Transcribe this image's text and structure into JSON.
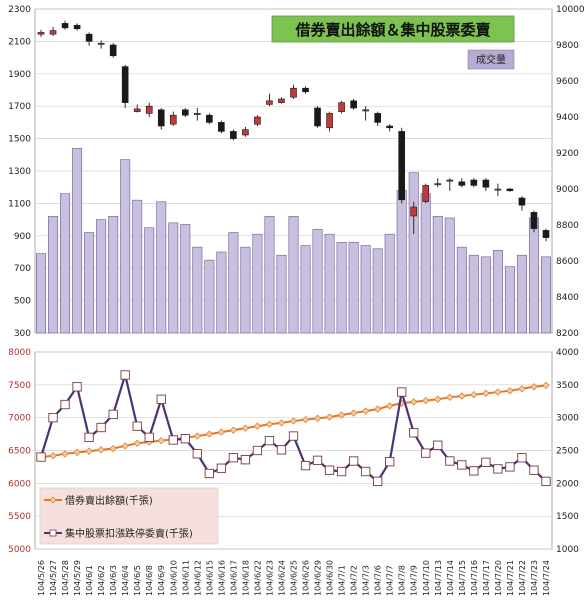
{
  "colors": {
    "volume_fill": "#c9bfe0",
    "volume_stroke": "#6b5f8f",
    "candle_up": "#c0393b",
    "candle_down": "#1a1a1a",
    "margin_line": "#e07b22",
    "margin_marker": "#f1c9a3",
    "pending_line": "#4a3477",
    "pending_marker": "#ffffff",
    "title_bg": "#7ec352",
    "legend_box_bg": "#f6e0dd"
  },
  "chart_data": [
    {
      "type": "candlestick+bar",
      "title": "借券賣出餘額＆集中股票委賣",
      "volume_label": "成交量",
      "left_axis": {
        "min": 300,
        "max": 2300,
        "ticks": [
          300,
          500,
          700,
          900,
          1100,
          1300,
          1500,
          1700,
          1900,
          2100,
          2300
        ]
      },
      "right_axis": {
        "min": 8200,
        "max": 10000,
        "ticks": [
          8200,
          8400,
          8600,
          8800,
          9000,
          9200,
          9400,
          9600,
          9800,
          10000
        ]
      },
      "grid": true,
      "categories": [
        "104/5/26",
        "104/5/27",
        "104/5/28",
        "104/5/29",
        "104/6/1",
        "104/6/2",
        "104/6/3",
        "104/6/4",
        "104/6/5",
        "104/6/8",
        "104/6/9",
        "104/6/10",
        "104/6/11",
        "104/6/12",
        "104/6/15",
        "104/6/16",
        "104/6/17",
        "104/6/18",
        "104/6/22",
        "104/6/23",
        "104/6/24",
        "104/6/25",
        "104/6/26",
        "104/6/29",
        "104/6/30",
        "104/7/1",
        "104/7/2",
        "104/7/3",
        "104/7/6",
        "104/7/7",
        "104/7/8",
        "104/7/9",
        "104/7/10",
        "104/7/13",
        "104/7/14",
        "104/7/15",
        "104/7/16",
        "104/7/17",
        "104/7/20",
        "104/7/21",
        "104/7/22",
        "104/7/23",
        "104/7/24"
      ],
      "volume": [
        790,
        1020,
        1160,
        1440,
        920,
        1000,
        1020,
        1370,
        1120,
        950,
        1110,
        980,
        970,
        830,
        750,
        800,
        920,
        830,
        910,
        1020,
        780,
        1020,
        840,
        940,
        910,
        860,
        860,
        840,
        820,
        910,
        1180,
        1290,
        1160,
        1020,
        1010,
        830,
        780,
        770,
        810,
        710,
        780,
        1010,
        770
      ],
      "candles": [
        {
          "open": 9860,
          "close": 9870,
          "high": 9885,
          "low": 9845
        },
        {
          "open": 9860,
          "close": 9880,
          "high": 9900,
          "low": 9850
        },
        {
          "open": 9920,
          "close": 9895,
          "high": 9935,
          "low": 9885
        },
        {
          "open": 9910,
          "close": 9890,
          "high": 9920,
          "low": 9880
        },
        {
          "open": 9860,
          "close": 9820,
          "high": 9870,
          "low": 9795
        },
        {
          "open": 9810,
          "close": 9810,
          "high": 9825,
          "low": 9780
        },
        {
          "open": 9800,
          "close": 9740,
          "high": 9810,
          "low": 9730
        },
        {
          "open": 9680,
          "close": 9480,
          "high": 9690,
          "low": 9450
        },
        {
          "open": 9430,
          "close": 9445,
          "high": 9470,
          "low": 9425
        },
        {
          "open": 9420,
          "close": 9460,
          "high": 9480,
          "low": 9400
        },
        {
          "open": 9440,
          "close": 9350,
          "high": 9450,
          "low": 9330
        },
        {
          "open": 9360,
          "close": 9410,
          "high": 9430,
          "low": 9350
        },
        {
          "open": 9440,
          "close": 9410,
          "high": 9450,
          "low": 9400
        },
        {
          "open": 9420,
          "close": 9420,
          "high": 9450,
          "low": 9380
        },
        {
          "open": 9410,
          "close": 9370,
          "high": 9420,
          "low": 9360
        },
        {
          "open": 9370,
          "close": 9320,
          "high": 9380,
          "low": 9310
        },
        {
          "open": 9320,
          "close": 9280,
          "high": 9330,
          "low": 9270
        },
        {
          "open": 9300,
          "close": 9330,
          "high": 9345,
          "low": 9290
        },
        {
          "open": 9360,
          "close": 9400,
          "high": 9410,
          "low": 9350
        },
        {
          "open": 9470,
          "close": 9490,
          "high": 9530,
          "low": 9460
        },
        {
          "open": 9480,
          "close": 9500,
          "high": 9510,
          "low": 9475
        },
        {
          "open": 9510,
          "close": 9560,
          "high": 9580,
          "low": 9500
        },
        {
          "open": 9560,
          "close": 9540,
          "high": 9570,
          "low": 9530
        },
        {
          "open": 9450,
          "close": 9350,
          "high": 9460,
          "low": 9340
        },
        {
          "open": 9340,
          "close": 9420,
          "high": 9430,
          "low": 9320
        },
        {
          "open": 9430,
          "close": 9480,
          "high": 9490,
          "low": 9420
        },
        {
          "open": 9490,
          "close": 9450,
          "high": 9500,
          "low": 9440
        },
        {
          "open": 9440,
          "close": 9440,
          "high": 9460,
          "low": 9380
        },
        {
          "open": 9420,
          "close": 9370,
          "high": 9430,
          "low": 9350
        },
        {
          "open": 9350,
          "close": 9340,
          "high": 9360,
          "low": 9320
        },
        {
          "open": 9320,
          "close": 8940,
          "high": 9340,
          "low": 8920
        },
        {
          "open": 8850,
          "close": 8900,
          "high": 8930,
          "low": 8750
        },
        {
          "open": 8930,
          "close": 9020,
          "high": 9030,
          "low": 8920
        },
        {
          "open": 9030,
          "close": 9030,
          "high": 9060,
          "low": 9010
        },
        {
          "open": 9050,
          "close": 9050,
          "high": 9060,
          "low": 8990
        },
        {
          "open": 9040,
          "close": 9020,
          "high": 9060,
          "low": 9010
        },
        {
          "open": 9050,
          "close": 9020,
          "high": 9060,
          "low": 9010
        },
        {
          "open": 9050,
          "close": 9010,
          "high": 9060,
          "low": 8990
        },
        {
          "open": 9000,
          "close": 9000,
          "high": 9030,
          "low": 8960
        },
        {
          "open": 9000,
          "close": 8990,
          "high": 9005,
          "low": 8985
        },
        {
          "open": 8950,
          "close": 8910,
          "high": 8960,
          "low": 8880
        },
        {
          "open": 8870,
          "close": 8780,
          "high": 8880,
          "low": 8760
        },
        {
          "open": 8770,
          "close": 8730,
          "high": 8780,
          "low": 8710
        }
      ]
    },
    {
      "type": "line",
      "left_axis": {
        "min": 5000,
        "max": 8000,
        "ticks": [
          5000,
          5500,
          6000,
          6500,
          7000,
          7500,
          8000
        ]
      },
      "right_axis": {
        "min": 1000,
        "max": 4000,
        "ticks": [
          1000,
          1500,
          2000,
          2500,
          3000,
          3500,
          4000
        ]
      },
      "grid": true,
      "legend_position": "bottom-left",
      "series": [
        {
          "name": "借券賣出餘額(千張)",
          "axis": "left",
          "values": [
            6400,
            6420,
            6450,
            6470,
            6490,
            6510,
            6530,
            6570,
            6610,
            6630,
            6650,
            6670,
            6690,
            6720,
            6750,
            6780,
            6810,
            6840,
            6870,
            6900,
            6920,
            6950,
            6970,
            6990,
            7010,
            7040,
            7070,
            7100,
            7130,
            7180,
            7220,
            7240,
            7260,
            7280,
            7310,
            7330,
            7350,
            7370,
            7390,
            7410,
            7440,
            7470,
            7490
          ]
        },
        {
          "name": "集中股票扣漲跌停委賣(千張)",
          "axis": "right",
          "values": [
            2400,
            3000,
            3200,
            3470,
            2700,
            2850,
            3050,
            3650,
            2870,
            2700,
            3280,
            2660,
            2680,
            2450,
            2150,
            2230,
            2390,
            2360,
            2500,
            2650,
            2510,
            2720,
            2270,
            2350,
            2200,
            2180,
            2340,
            2180,
            2030,
            2330,
            3390,
            2770,
            2460,
            2580,
            2340,
            2280,
            2190,
            2320,
            2220,
            2250,
            2390,
            2200,
            2030
          ]
        }
      ]
    }
  ]
}
